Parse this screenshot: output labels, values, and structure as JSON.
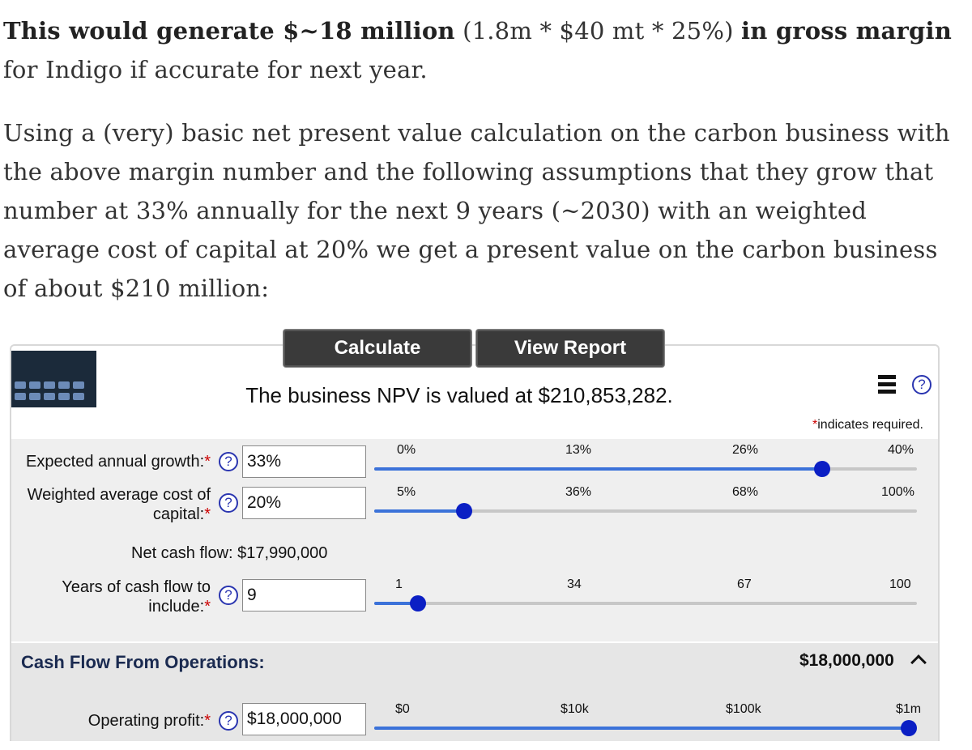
{
  "article": {
    "p1_bold1": "This would generate $~18 million",
    "p1_mid": " (1.8m * $40 mt * 25%) ",
    "p1_bold2": "in gross margin",
    "p1_end": " for Indigo if accurate for next year.",
    "p2": "Using a (very) basic net present value calculation on the carbon business with the above margin number and the following assumptions that they grow that number at 33% annually for the next 9 years (~2030) with an weighted average cost of capital at 20% we get a present value on the carbon business of about $210 million:"
  },
  "calculator": {
    "calculate_label": "Calculate",
    "view_report_label": "View Report",
    "npv_text": "The business NPV is valued at $210,853,282.",
    "required_note": "indicates required.",
    "required_star": "*",
    "help_glyph": "?",
    "growth": {
      "label": "Expected annual growth:",
      "value": "33%",
      "ticks": [
        "0%",
        "13%",
        "26%",
        "40%"
      ],
      "fraction": 0.825
    },
    "wacc": {
      "label_line1": "Weighted average cost of",
      "label_line2": "capital:",
      "value": "20%",
      "ticks": [
        "5%",
        "36%",
        "68%",
        "100%"
      ],
      "fraction": 0.165
    },
    "net_cash_flow": "Net cash flow: $17,990,000",
    "years": {
      "label_line1": "Years of cash flow to",
      "label_line2": "include:",
      "value": "9",
      "ticks": [
        "1",
        "34",
        "67",
        "100"
      ],
      "fraction": 0.081
    },
    "cfo": {
      "title": "Cash Flow From Operations:",
      "total": "$18,000,000"
    },
    "operating_profit": {
      "label": "Operating profit:",
      "value": "$18,000,000",
      "ticks": [
        "$0",
        "$10k",
        "$100k",
        "$1m"
      ],
      "fraction": 0.985
    },
    "colors": {
      "slider_fill": "#3b72d9",
      "slider_thumb": "#0b1fc4",
      "button_bg": "#3a3a3a",
      "required_star": "#cc0000"
    }
  }
}
